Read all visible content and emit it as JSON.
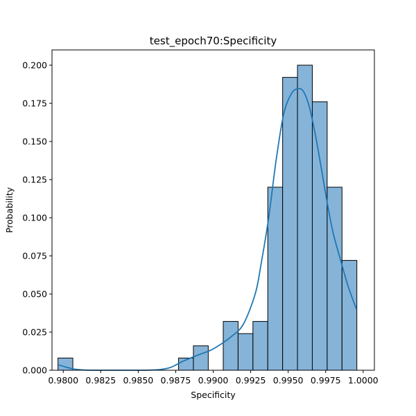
{
  "chart_data": {
    "type": "bar",
    "title": "test_epoch70:Specificity",
    "xlabel": "Specificity",
    "ylabel": "Probability",
    "xlim": [
      0.97925,
      1.00075
    ],
    "ylim": [
      0,
      0.21
    ],
    "xticks": [
      {
        "value": 0.98,
        "label": "0.9800"
      },
      {
        "value": 0.9825,
        "label": "0.9825"
      },
      {
        "value": 0.985,
        "label": "0.9850"
      },
      {
        "value": 0.9875,
        "label": "0.9875"
      },
      {
        "value": 0.99,
        "label": "0.9900"
      },
      {
        "value": 0.9925,
        "label": "0.9925"
      },
      {
        "value": 0.995,
        "label": "0.9950"
      },
      {
        "value": 0.9975,
        "label": "0.9975"
      },
      {
        "value": 1.0,
        "label": "1.0000"
      }
    ],
    "yticks": [
      {
        "value": 0.0,
        "label": "0.000"
      },
      {
        "value": 0.025,
        "label": "0.025"
      },
      {
        "value": 0.05,
        "label": "0.050"
      },
      {
        "value": 0.075,
        "label": "0.075"
      },
      {
        "value": 0.1,
        "label": "0.100"
      },
      {
        "value": 0.125,
        "label": "0.125"
      },
      {
        "value": 0.15,
        "label": "0.150"
      },
      {
        "value": 0.175,
        "label": "0.175"
      },
      {
        "value": 0.2,
        "label": "0.200"
      }
    ],
    "bins": [
      {
        "x0": 0.97965,
        "x1": 0.98064,
        "value": 0.008
      },
      {
        "x0": 0.98769,
        "x1": 0.98868,
        "value": 0.008
      },
      {
        "x0": 0.98868,
        "x1": 0.98967,
        "value": 0.016
      },
      {
        "x0": 0.99067,
        "x1": 0.99166,
        "value": 0.032
      },
      {
        "x0": 0.99166,
        "x1": 0.99265,
        "value": 0.024
      },
      {
        "x0": 0.99265,
        "x1": 0.99364,
        "value": 0.032
      },
      {
        "x0": 0.99364,
        "x1": 0.99463,
        "value": 0.12
      },
      {
        "x0": 0.99463,
        "x1": 0.99562,
        "value": 0.192
      },
      {
        "x0": 0.99562,
        "x1": 0.99661,
        "value": 0.2
      },
      {
        "x0": 0.99661,
        "x1": 0.9976,
        "value": 0.176
      },
      {
        "x0": 0.9976,
        "x1": 0.99859,
        "value": 0.12
      },
      {
        "x0": 0.99859,
        "x1": 0.99958,
        "value": 0.072
      }
    ],
    "kde": {
      "x": [
        0.9797,
        0.9802,
        0.9807,
        0.9815,
        0.9825,
        0.984,
        0.9855,
        0.9865,
        0.9872,
        0.988,
        0.989,
        0.9898,
        0.9905,
        0.9912,
        0.992,
        0.9928,
        0.9932,
        0.9937,
        0.9942,
        0.9947,
        0.9952,
        0.9956,
        0.996,
        0.9964,
        0.9968,
        0.9972,
        0.9976,
        0.998,
        0.9985,
        0.999,
        0.99955
      ],
      "y": [
        0.0035,
        0.002,
        0.0008,
        0.0001,
        0.0,
        0.0,
        0.0,
        0.0005,
        0.002,
        0.006,
        0.01,
        0.013,
        0.017,
        0.022,
        0.03,
        0.05,
        0.07,
        0.1,
        0.138,
        0.168,
        0.181,
        0.1845,
        0.183,
        0.173,
        0.155,
        0.133,
        0.11,
        0.09,
        0.072,
        0.055,
        0.04
      ]
    },
    "colors": {
      "bar_fill": "#86b4d8",
      "bar_edge": "#000000",
      "line": "#1f77b4"
    },
    "grid": false,
    "legend": "none"
  }
}
